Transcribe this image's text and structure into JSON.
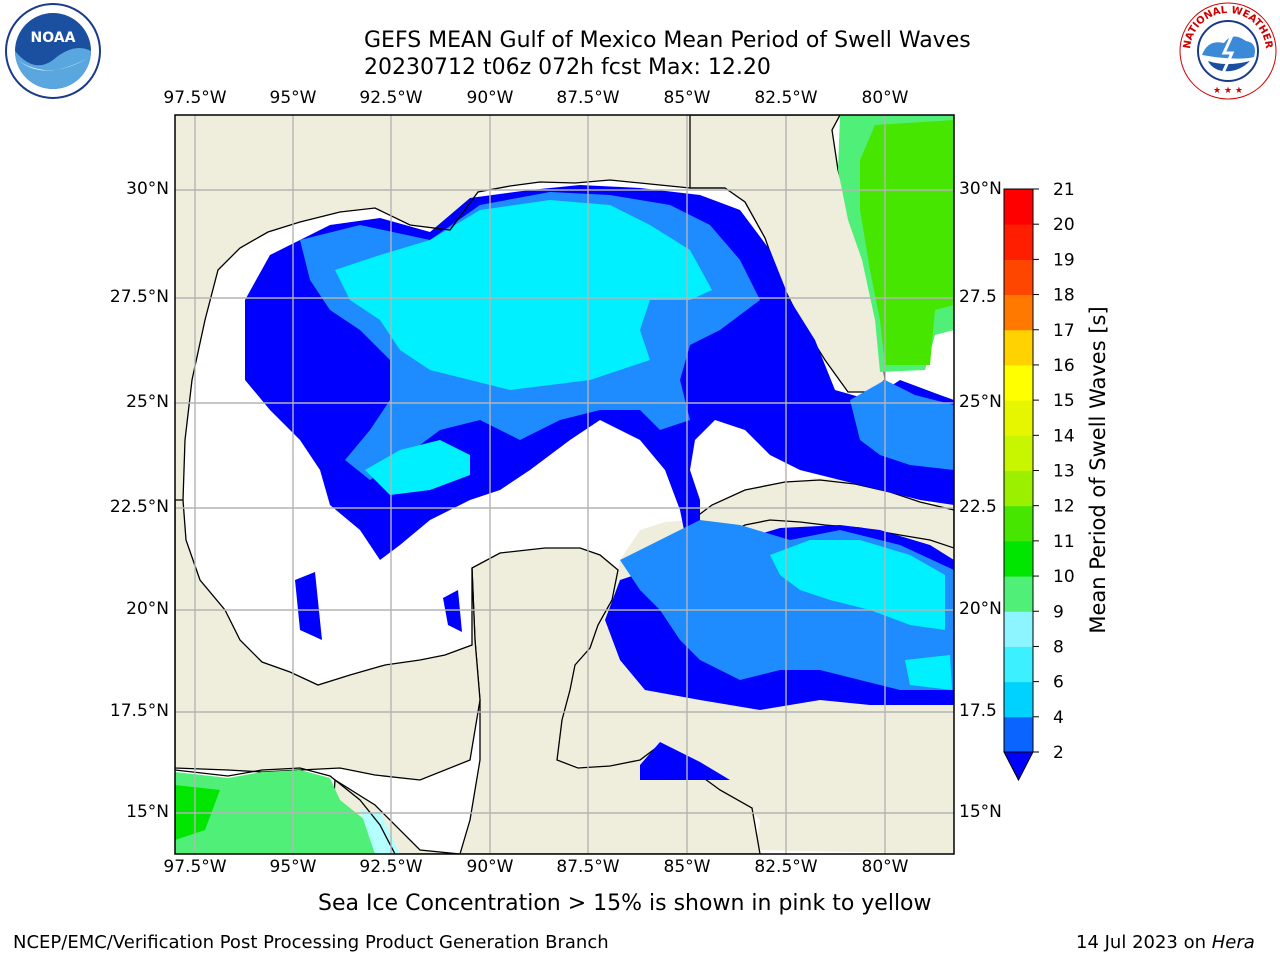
{
  "title": {
    "line1": "GEFS MEAN Gulf of Mexico Mean Period of Swell Waves",
    "line2": "20230712 t06z 072h fcst   Max: 12.20"
  },
  "axes": {
    "lon_ticks": [
      "97.5°W",
      "95°W",
      "92.5°W",
      "90°W",
      "87.5°W",
      "85°W",
      "82.5°W",
      "80°W"
    ],
    "lat_ticks_left": [
      "30°N",
      "27.5°N",
      "25°N",
      "22.5°N",
      "20°N",
      "17.5°N",
      "15°N"
    ],
    "lat_ticks_right": [
      "30°N",
      "27.5",
      "25°N",
      "22.5",
      "20°N",
      "17.5",
      "15°N"
    ]
  },
  "colorbar": {
    "label": "Mean Period of Swell Waves [s]",
    "ticks": [
      "2",
      "4",
      "6",
      "8",
      "9",
      "10",
      "11",
      "12",
      "13",
      "14",
      "15",
      "16",
      "17",
      "18",
      "19",
      "20",
      "21"
    ],
    "colors": [
      "#0a64ff",
      "#00d2ff",
      "#3cf0ff",
      "#8cf5ff",
      "#b4ffff",
      "#50f078",
      "#00e600",
      "#46e600",
      "#9bf000",
      "#c8f500",
      "#e6f500",
      "#ffff00",
      "#ffd200",
      "#ffaa00",
      "#ff7800",
      "#ff4600",
      "#ff1e00",
      "#ff0000"
    ],
    "extend_color": "#0000ff"
  },
  "map": {
    "land_color": "#efeedd",
    "ocean_no_swell": "#ffffff",
    "grid_color": "#b4b4b4"
  },
  "footer": {
    "note": "Sea Ice Concentration > 15% is shown in pink to yellow",
    "org": "NCEP/EMC/Verification Post Processing Product Generation Branch",
    "date": "14 Jul 2023 on ",
    "machine": "Hera"
  },
  "logos": {
    "noaa_text": "NOAA",
    "nws_text": "NATIONAL WEATHER SERVICE"
  }
}
